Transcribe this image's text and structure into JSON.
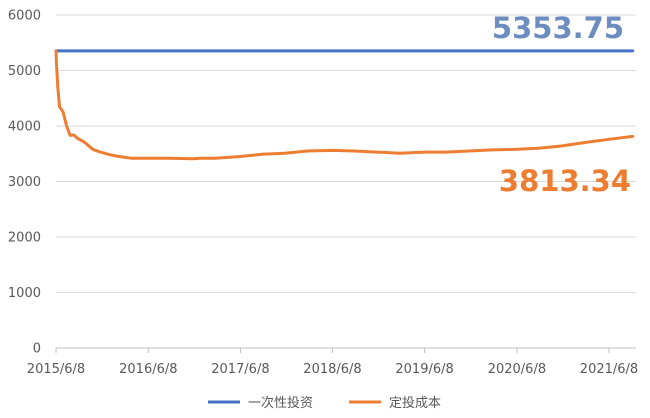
{
  "chart_data": {
    "type": "line",
    "title": "",
    "xlabel": "",
    "ylabel": "",
    "ylim": [
      0,
      6000
    ],
    "y_ticks": [
      0,
      1000,
      2000,
      3000,
      4000,
      5000,
      6000
    ],
    "x_tick_labels": [
      "2015/6/8",
      "2016/6/8",
      "2017/6/8",
      "2018/6/8",
      "2019/6/8",
      "2020/6/8",
      "2021/6/8"
    ],
    "grid": true,
    "legend_position": "bottom",
    "series": [
      {
        "name": "一次性投资",
        "color": "#4472C4",
        "x": [
          "2015-06-08",
          "2021-09-10"
        ],
        "values": [
          5353.75,
          5353.75
        ],
        "end_label": "5353.75",
        "end_label_color": "#6D8DBF"
      },
      {
        "name": "定投成本",
        "color": "#ED7D31",
        "x": [
          "2015-06-08",
          "2015-06-10",
          "2015-06-15",
          "2015-06-22",
          "2015-07-06",
          "2015-07-20",
          "2015-08-03",
          "2015-08-17",
          "2015-09-01",
          "2015-10-01",
          "2015-11-01",
          "2015-12-01",
          "2016-01-01",
          "2016-02-01",
          "2016-03-01",
          "2016-04-01",
          "2016-06-08",
          "2016-09-01",
          "2016-12-01",
          "2017-01-01",
          "2017-03-01",
          "2017-06-08",
          "2017-09-01",
          "2017-12-01",
          "2018-03-01",
          "2018-06-08",
          "2018-09-01",
          "2018-12-01",
          "2019-03-01",
          "2019-06-08",
          "2019-09-01",
          "2019-12-01",
          "2020-03-01",
          "2020-06-08",
          "2020-09-01",
          "2020-12-01",
          "2021-03-01",
          "2021-06-08",
          "2021-09-10"
        ],
        "values": [
          5350,
          5100,
          4700,
          4350,
          4250,
          4000,
          3830,
          3840,
          3780,
          3700,
          3580,
          3530,
          3490,
          3460,
          3440,
          3420,
          3420,
          3420,
          3410,
          3420,
          3420,
          3450,
          3490,
          3510,
          3550,
          3560,
          3550,
          3530,
          3510,
          3530,
          3530,
          3550,
          3570,
          3580,
          3600,
          3640,
          3700,
          3760,
          3813.34
        ],
        "end_label": "3813.34",
        "end_label_color": "#ED7D31"
      }
    ]
  }
}
